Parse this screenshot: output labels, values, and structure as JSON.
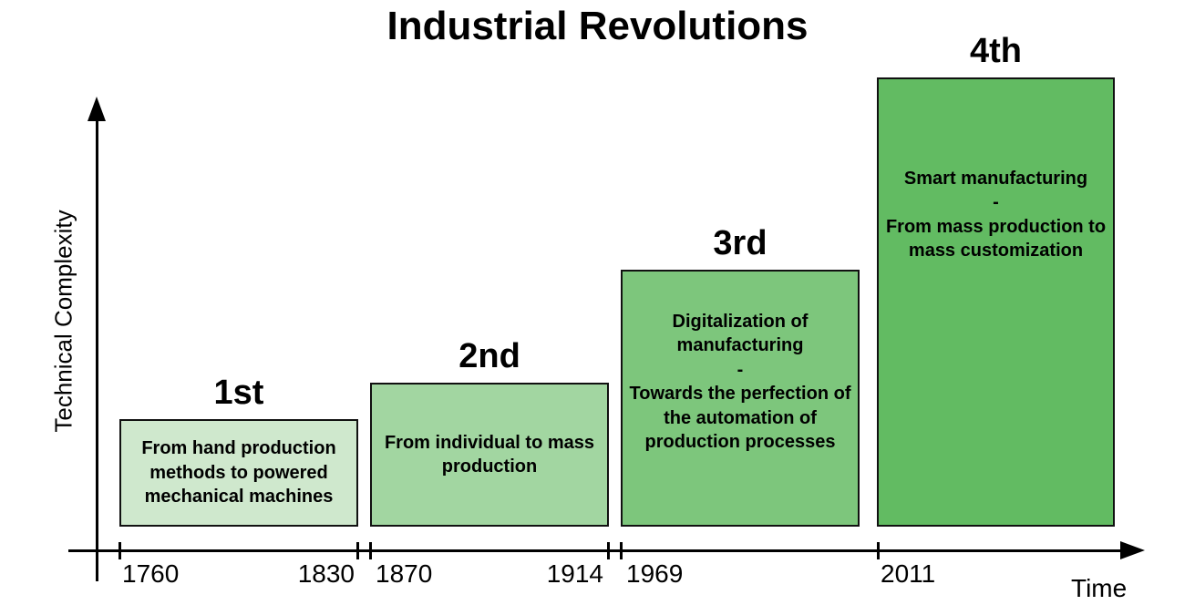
{
  "title": "Industrial Revolutions",
  "axes": {
    "y_label": "Technical Complexity",
    "x_label": "Time"
  },
  "chart_data": {
    "type": "bar",
    "title": "Industrial Revolutions",
    "xlabel": "Time",
    "ylabel": "Technical Complexity",
    "x_tick_labels": [
      "1760",
      "1830",
      "1870",
      "1914",
      "1969",
      "2011"
    ],
    "bars": [
      {
        "label": "1st",
        "start_year": "1760",
        "end_year": "1830",
        "lines": [
          "From hand production methods to powered mechanical machines"
        ],
        "relative_height": 0.24,
        "color": "#cfe8cd"
      },
      {
        "label": "2nd",
        "start_year": "1870",
        "end_year": "1914",
        "lines": [
          "From individual to mass production"
        ],
        "relative_height": 0.32,
        "color": "#a2d6a1"
      },
      {
        "label": "3rd",
        "start_year": "1969",
        "lines": [
          "Digitalization of manufacturing",
          "-",
          "Towards the perfection of the automation of production processes"
        ],
        "relative_height": 0.57,
        "color": "#7dc67c"
      },
      {
        "label": "4th",
        "start_year": "2011",
        "lines": [
          "Smart manufacturing",
          "-",
          "From mass production to mass customization"
        ],
        "relative_height": 1.0,
        "color": "#62bb62"
      }
    ]
  }
}
